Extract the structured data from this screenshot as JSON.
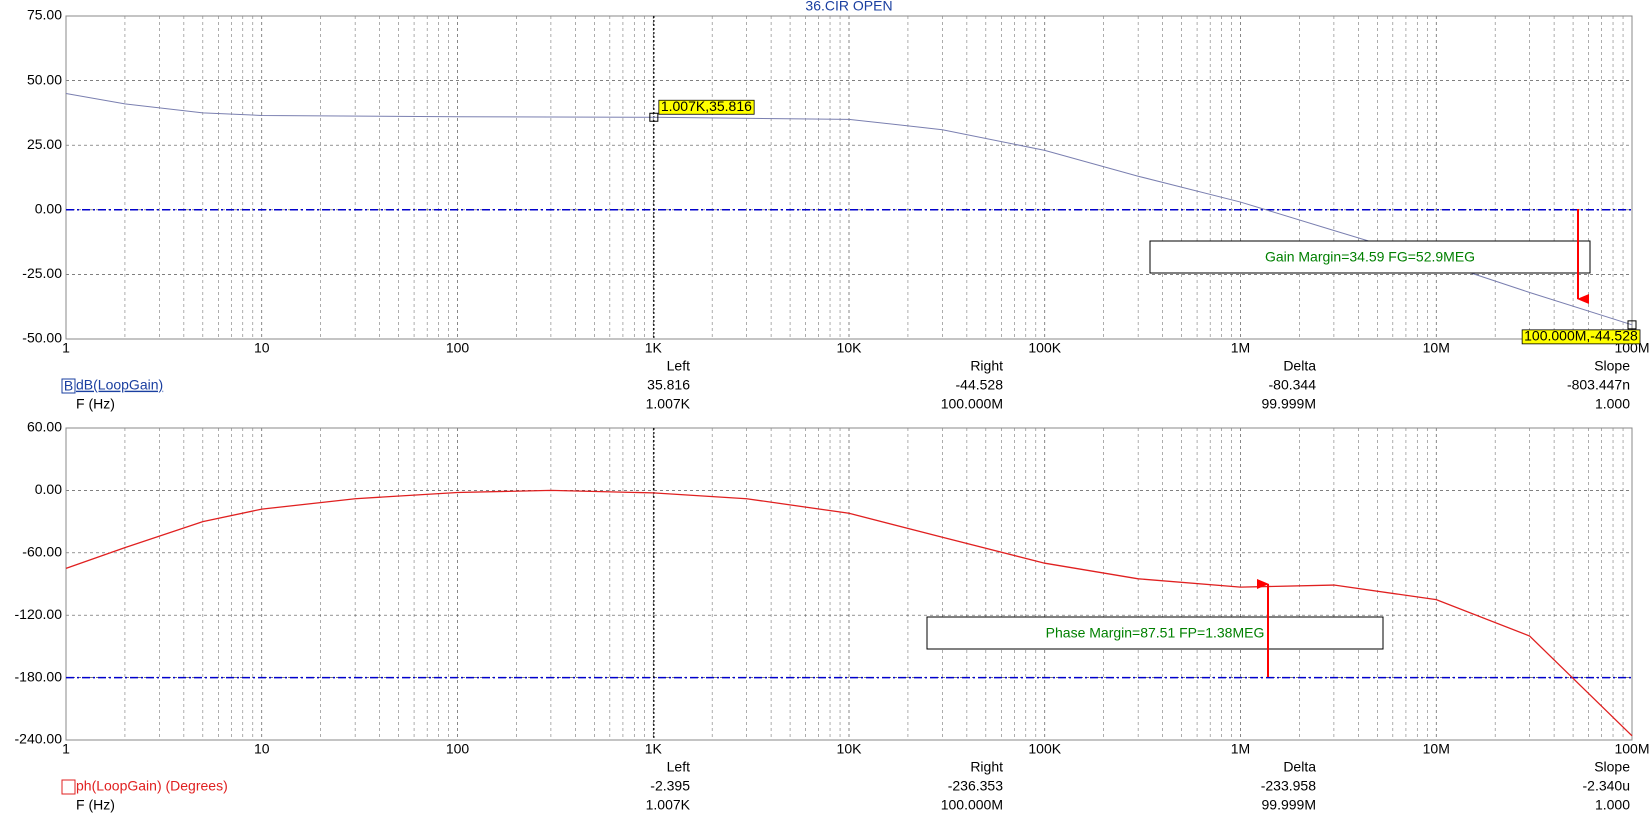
{
  "chart_data": [
    {
      "type": "line",
      "title": "36.CIR OPEN",
      "xscale": "log",
      "xlim": [
        1,
        100000000
      ],
      "xticks": [
        1,
        10,
        100,
        {
          "value": 1000,
          "label": "1K"
        },
        {
          "value": 10000,
          "label": "10K"
        },
        {
          "value": 100000,
          "label": "100K"
        },
        {
          "value": 1000000,
          "label": "1M"
        },
        {
          "value": 10000000,
          "label": "10M"
        },
        {
          "value": 100000000,
          "label": "100M"
        }
      ],
      "ylim": [
        -50,
        75
      ],
      "yticks": [
        {
          "value": -50,
          "label": "-50.00"
        },
        {
          "value": -25,
          "label": "-25.00"
        },
        {
          "value": 0,
          "label": "0.00"
        },
        {
          "value": 25,
          "label": "25.00"
        },
        {
          "value": 50,
          "label": "50.00"
        },
        {
          "value": 75,
          "label": "75.00"
        }
      ],
      "grid": true,
      "minor_grid": true,
      "x": [
        1,
        2,
        5,
        10,
        100,
        1000,
        10000,
        30000,
        100000,
        300000,
        1000000,
        3000000,
        10000000,
        30000000,
        100000000
      ],
      "series": [
        {
          "name": "dB(LoopGain)",
          "color": "#7a7fb0",
          "values": [
            45,
            41,
            37.5,
            36.5,
            36,
            35.8,
            35,
            31,
            23,
            13,
            3,
            -8,
            -20,
            -32,
            -44.5
          ]
        }
      ],
      "reference_line": 0,
      "cursors": [
        {
          "x": 1007,
          "y": 35.816,
          "label": "1.007K,35.816"
        },
        {
          "x": 100000000,
          "y": -44.528,
          "label": "100.000M,-44.528"
        }
      ],
      "annotation": "Gain Margin=34.59 FG=52.9MEG",
      "readout": {
        "symbol": "B",
        "trace": "dB(LoopGain)",
        "axis": "F (Hz)",
        "columns": [
          "Left",
          "Right",
          "Delta",
          "Slope"
        ],
        "rows": [
          [
            "35.816",
            "-44.528",
            "-80.344",
            "-803.447n"
          ],
          [
            "1.007K",
            "100.000M",
            "99.999M",
            "1.000"
          ]
        ]
      }
    },
    {
      "type": "line",
      "xscale": "log",
      "xlim": [
        1,
        100000000
      ],
      "xticks": [
        1,
        10,
        100,
        {
          "value": 1000,
          "label": "1K"
        },
        {
          "value": 10000,
          "label": "10K"
        },
        {
          "value": 100000,
          "label": "100K"
        },
        {
          "value": 1000000,
          "label": "1M"
        },
        {
          "value": 10000000,
          "label": "10M"
        },
        {
          "value": 100000000,
          "label": "100M"
        }
      ],
      "ylim": [
        -240,
        60
      ],
      "yticks": [
        {
          "value": -240,
          "label": "-240.00"
        },
        {
          "value": -180,
          "label": "-180.00"
        },
        {
          "value": -120,
          "label": "-120.00"
        },
        {
          "value": -60,
          "label": "-60.00"
        },
        {
          "value": 0,
          "label": "0.00"
        },
        {
          "value": 60,
          "label": "60.00"
        }
      ],
      "grid": true,
      "minor_grid": true,
      "x": [
        1,
        2,
        5,
        10,
        30,
        100,
        300,
        1000,
        3000,
        10000,
        30000,
        100000,
        300000,
        1000000,
        3000000,
        10000000,
        30000000,
        100000000
      ],
      "series": [
        {
          "name": "ph(LoopGain) (Degrees)",
          "color": "#e02020",
          "values": [
            -75,
            -55,
            -30,
            -18,
            -8,
            -2,
            0,
            -2.4,
            -8,
            -22,
            -45,
            -70,
            -85,
            -93,
            -91,
            -105,
            -140,
            -236
          ]
        }
      ],
      "reference_line": -180,
      "cursors": [
        {
          "x": 1007,
          "y": -2.395
        }
      ],
      "annotation": "Phase Margin=87.51 FP=1.38MEG",
      "readout": {
        "trace": "ph(LoopGain) (Degrees)",
        "axis": "F (Hz)",
        "columns": [
          "Left",
          "Right",
          "Delta",
          "Slope"
        ],
        "rows": [
          [
            "-2.395",
            "-236.353",
            "-233.958",
            "-2.340u"
          ],
          [
            "1.007K",
            "100.000M",
            "99.999M",
            "1.000"
          ]
        ]
      }
    }
  ]
}
